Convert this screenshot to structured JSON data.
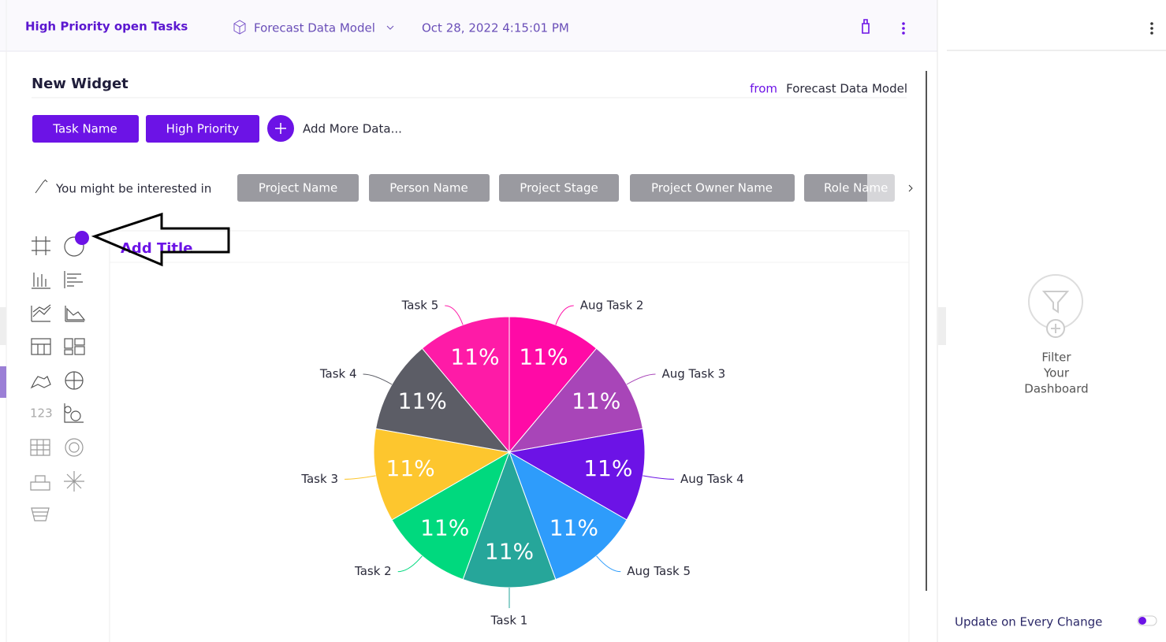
{
  "header": {
    "title": "High Priority open Tasks",
    "model": "Forecast Data Model",
    "timestamp": "Oct 28, 2022 4:15:01 PM"
  },
  "widget": {
    "title": "New Widget",
    "from_label": "from",
    "from_model": "Forecast Data Model",
    "data_pills": [
      "Task Name",
      "High Priority"
    ],
    "add_more": "Add More Data...",
    "suggest_label": "You might be interested in",
    "suggestions": [
      "Project Name",
      "Person Name",
      "Project Stage",
      "Project Owner Name",
      "Role Name"
    ],
    "icon_text": "123",
    "chart_title_placeholder": "Add Title"
  },
  "chart_data": {
    "type": "pie",
    "categories": [
      "Aug Task 2",
      "Aug Task 3",
      "Aug Task 4",
      "Aug Task 5",
      "Task 1",
      "Task 2",
      "Task 3",
      "Task 4",
      "Task 5"
    ],
    "values": [
      11,
      11,
      11,
      11,
      11,
      11,
      11,
      11,
      11
    ],
    "value_labels": [
      "11%",
      "11%",
      "11%",
      "11%",
      "11%",
      "11%",
      "11%",
      "11%",
      "11%"
    ],
    "colors": [
      "#ff0aa6",
      "#a845b8",
      "#6c13e6",
      "#2e9cfb",
      "#26a69a",
      "#00d97e",
      "#fdc62e",
      "#5c5d66",
      "#fe1ba7"
    ]
  },
  "filter_panel": {
    "label_lines": [
      "Filter",
      "Your",
      "Dashboard"
    ],
    "update_label": "Update on Every Change"
  }
}
